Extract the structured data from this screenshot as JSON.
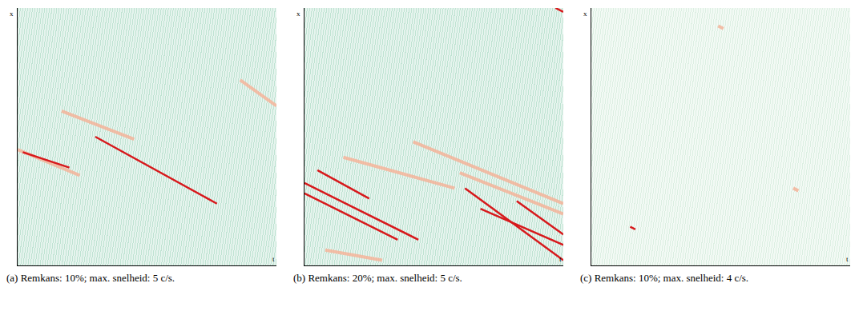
{
  "chart_data": [
    {
      "type": "line",
      "title": "(a) Remkans: 10%; max. snelheid: 5 c/s.",
      "xlabel": "t",
      "ylabel": "x",
      "xlim": [
        0,
        1
      ],
      "ylim": [
        0,
        1
      ],
      "xticks": [],
      "yticks": [],
      "tick_labels": false,
      "grid": false,
      "series": [
        {
          "color": "#f4b49a",
          "x": [
            0.0,
            0.24,
            null,
            0.17,
            0.45,
            null,
            0.86,
            1.0
          ],
          "y": [
            0.45,
            0.35,
            null,
            0.6,
            0.49,
            null,
            0.72,
            0.62
          ]
        },
        {
          "color": "#d7191c",
          "x": [
            0.3,
            0.77,
            null,
            0.02,
            0.2
          ],
          "y": [
            0.5,
            0.24,
            null,
            0.44,
            0.38
          ]
        }
      ]
    },
    {
      "type": "line",
      "title": "(b) Remkans: 20%; max. snelheid: 5 c/s.",
      "xlabel": "t",
      "ylabel": "x",
      "xlim": [
        0,
        1
      ],
      "ylim": [
        0,
        1
      ],
      "xticks": [],
      "yticks": [],
      "tick_labels": false,
      "grid": false,
      "series": [
        {
          "color": "#f4b49a",
          "x": [
            0.15,
            0.58,
            null,
            0.42,
            1.0,
            null,
            0.08,
            0.3,
            null,
            0.6,
            1.0
          ],
          "y": [
            0.42,
            0.3,
            null,
            0.48,
            0.24,
            null,
            0.06,
            0.02,
            null,
            0.36,
            0.2
          ]
        },
        {
          "color": "#d7191c",
          "x": [
            0.0,
            0.44,
            null,
            0.0,
            0.36,
            null,
            0.05,
            0.25,
            null,
            0.62,
            1.0,
            null,
            0.68,
            1.0,
            null,
            0.82,
            1.0,
            null,
            0.97,
            1.0
          ],
          "y": [
            0.32,
            0.1,
            null,
            0.28,
            0.1,
            null,
            0.37,
            0.26,
            null,
            0.3,
            0.02,
            null,
            0.22,
            0.08,
            null,
            0.25,
            0.12,
            null,
            1.0,
            0.985
          ]
        }
      ]
    },
    {
      "type": "line",
      "title": "(c) Remkans: 10%; max. snelheid: 4 c/s.",
      "xlabel": "t",
      "ylabel": "x",
      "xlim": [
        0,
        1
      ],
      "ylim": [
        0,
        1
      ],
      "xticks": [],
      "yticks": [],
      "tick_labels": false,
      "grid": false,
      "series": [
        {
          "color": "#f4b49a",
          "x": [
            0.49,
            0.51,
            null,
            0.78,
            0.8
          ],
          "y": [
            0.93,
            0.92,
            null,
            0.3,
            0.29
          ]
        },
        {
          "color": "#d7191c",
          "x": [
            0.15,
            0.17
          ],
          "y": [
            0.15,
            0.14
          ]
        }
      ]
    }
  ]
}
